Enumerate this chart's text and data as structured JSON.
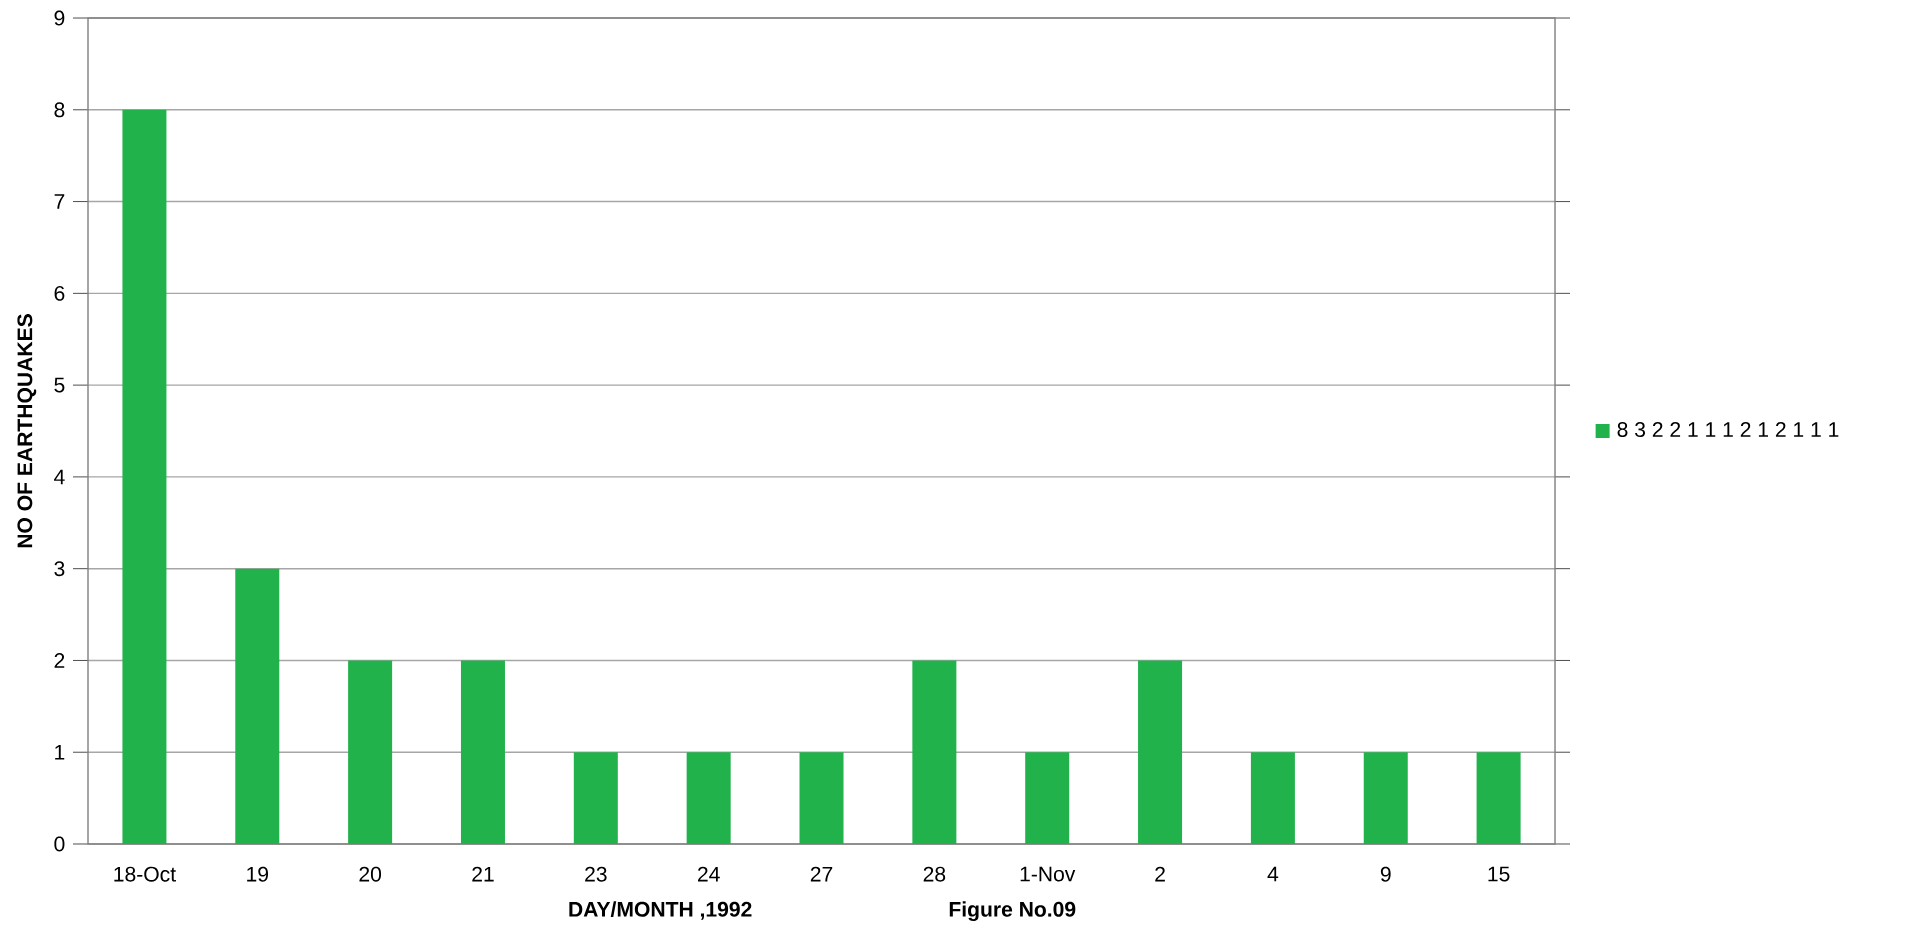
{
  "chart_data": {
    "type": "bar",
    "xlabel": "DAY/MONTH ,1992",
    "ylabel": "NO OF EARTHQUAKES",
    "categories": [
      "18-Oct",
      "19",
      "20",
      "21",
      "23",
      "24",
      "27",
      "28",
      "1-Nov",
      "2",
      "4",
      "9",
      "15"
    ],
    "series": [
      {
        "name": "8 3 2 2 1 1 1 2 1 2 1 1 1",
        "color": "#22b24c",
        "values": [
          8,
          3,
          2,
          2,
          1,
          1,
          1,
          2,
          1,
          2,
          1,
          1,
          1
        ]
      }
    ],
    "ylim": [
      0,
      9
    ],
    "yticks": [
      0,
      1,
      2,
      3,
      4,
      5,
      6,
      7,
      8,
      9
    ],
    "grid": "y",
    "legend": "right",
    "annotations": [
      "Figure No.09"
    ]
  }
}
